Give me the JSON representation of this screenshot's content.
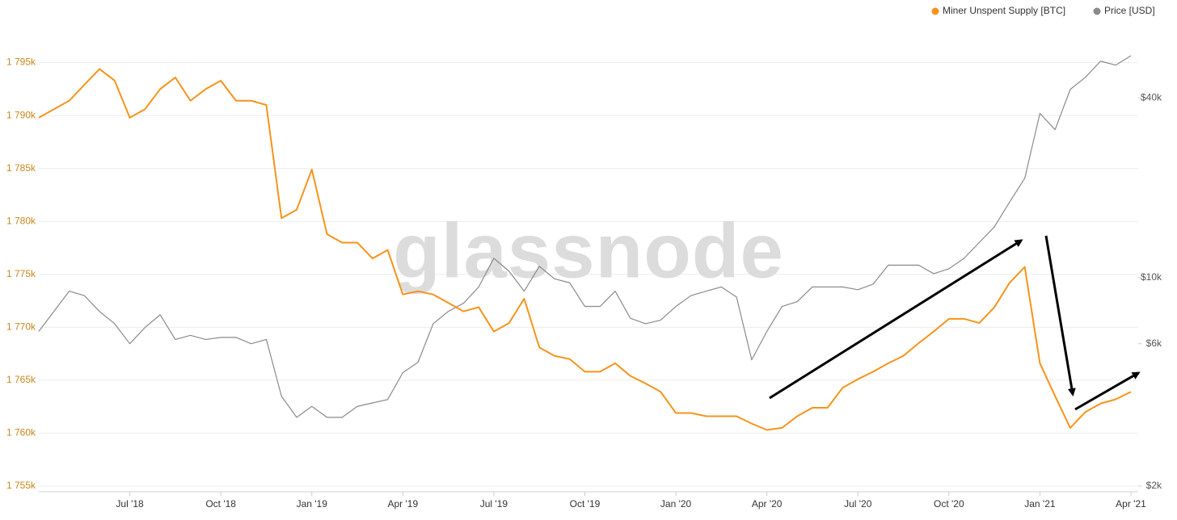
{
  "chart_data": {
    "type": "line",
    "watermark": "glassnode",
    "legend": "top-right",
    "grid": true,
    "y2scale": "log",
    "x": [
      null,
      null,
      null,
      null,
      null,
      null,
      "Jul '18",
      null,
      null,
      null,
      null,
      null,
      "Oct '18",
      null,
      null,
      null,
      null,
      null,
      "Jan '19",
      null,
      null,
      null,
      null,
      null,
      "Apr '19",
      null,
      null,
      null,
      null,
      null,
      "Jul '19",
      null,
      null,
      null,
      null,
      null,
      "Oct '19",
      null,
      null,
      null,
      null,
      null,
      "Jan '20",
      null,
      null,
      null,
      null,
      null,
      "Apr '20",
      null,
      null,
      null,
      null,
      null,
      "Jul '20",
      null,
      null,
      null,
      null,
      null,
      "Oct '20",
      null,
      null,
      null,
      null,
      null,
      "Jan '21",
      null,
      null,
      null,
      null,
      null,
      "Apr '21"
    ],
    "ylim": [
      1755000,
      1800000
    ],
    "yticks": [
      {
        "value": 1755000,
        "label": "1 755k"
      },
      {
        "value": 1760000,
        "label": "1 760k"
      },
      {
        "value": 1765000,
        "label": "1 765k"
      },
      {
        "value": 1770000,
        "label": "1 770k"
      },
      {
        "value": 1775000,
        "label": "1 775k"
      },
      {
        "value": 1780000,
        "label": "1 780k"
      },
      {
        "value": 1785000,
        "label": "1 785k"
      },
      {
        "value": 1790000,
        "label": "1 790k"
      },
      {
        "value": 1795000,
        "label": "1 795k"
      }
    ],
    "y2lim": [
      2000,
      79000
    ],
    "y2ticks": [
      {
        "value": 2000,
        "label": "$2k"
      },
      {
        "value": 6000,
        "label": "$6k"
      },
      {
        "value": 10000,
        "label": "$10k"
      },
      {
        "value": 40000,
        "label": "$40k"
      }
    ],
    "series": [
      {
        "name": "Miner Unspent Supply [BTC]",
        "color": "#f7931a",
        "axis": "y",
        "values": [
          1789800,
          1790600,
          1791400,
          1792900,
          1794400,
          1793300,
          1789800,
          1790600,
          1792500,
          1793600,
          1791400,
          1792500,
          1793300,
          1791400,
          1791400,
          1791000,
          1780300,
          1781100,
          1784900,
          1778800,
          1778000,
          1778000,
          1776500,
          1777300,
          1773100,
          1773400,
          1773100,
          1772300,
          1771500,
          1771900,
          1769600,
          1770400,
          1772700,
          1768100,
          1767300,
          1767000,
          1765800,
          1765800,
          1766600,
          1765400,
          1764700,
          1763900,
          1761900,
          1761900,
          1761600,
          1761600,
          1761600,
          1760900,
          1760300,
          1760500,
          1761600,
          1762400,
          1762400,
          1764300,
          1765100,
          1765800,
          1766600,
          1767300,
          1768500,
          1769600,
          1770800,
          1770800,
          1770400,
          1771900,
          1774200,
          1775700,
          1766600,
          1763500,
          1760500,
          1762000,
          1762800,
          1763200,
          1763900
        ]
      },
      {
        "name": "Price [USD]",
        "color": "#8a8a8a",
        "axis": "y2",
        "values": [
          6600,
          7700,
          9000,
          8700,
          7700,
          7000,
          6000,
          6800,
          7500,
          6200,
          6400,
          6200,
          6300,
          6300,
          6000,
          6200,
          4000,
          3400,
          3700,
          3400,
          3400,
          3700,
          3800,
          3900,
          4800,
          5200,
          7000,
          7700,
          8200,
          9300,
          11600,
          10500,
          9000,
          10900,
          9900,
          9600,
          8000,
          8000,
          9000,
          7300,
          7000,
          7200,
          8000,
          8700,
          9000,
          9300,
          8600,
          5300,
          6600,
          8000,
          8300,
          9300,
          9300,
          9300,
          9100,
          9500,
          11000,
          11000,
          11000,
          10300,
          10700,
          11600,
          13100,
          14800,
          17900,
          21500,
          35500,
          31300,
          42700,
          46900,
          53100,
          51500,
          55400
        ]
      }
    ]
  }
}
